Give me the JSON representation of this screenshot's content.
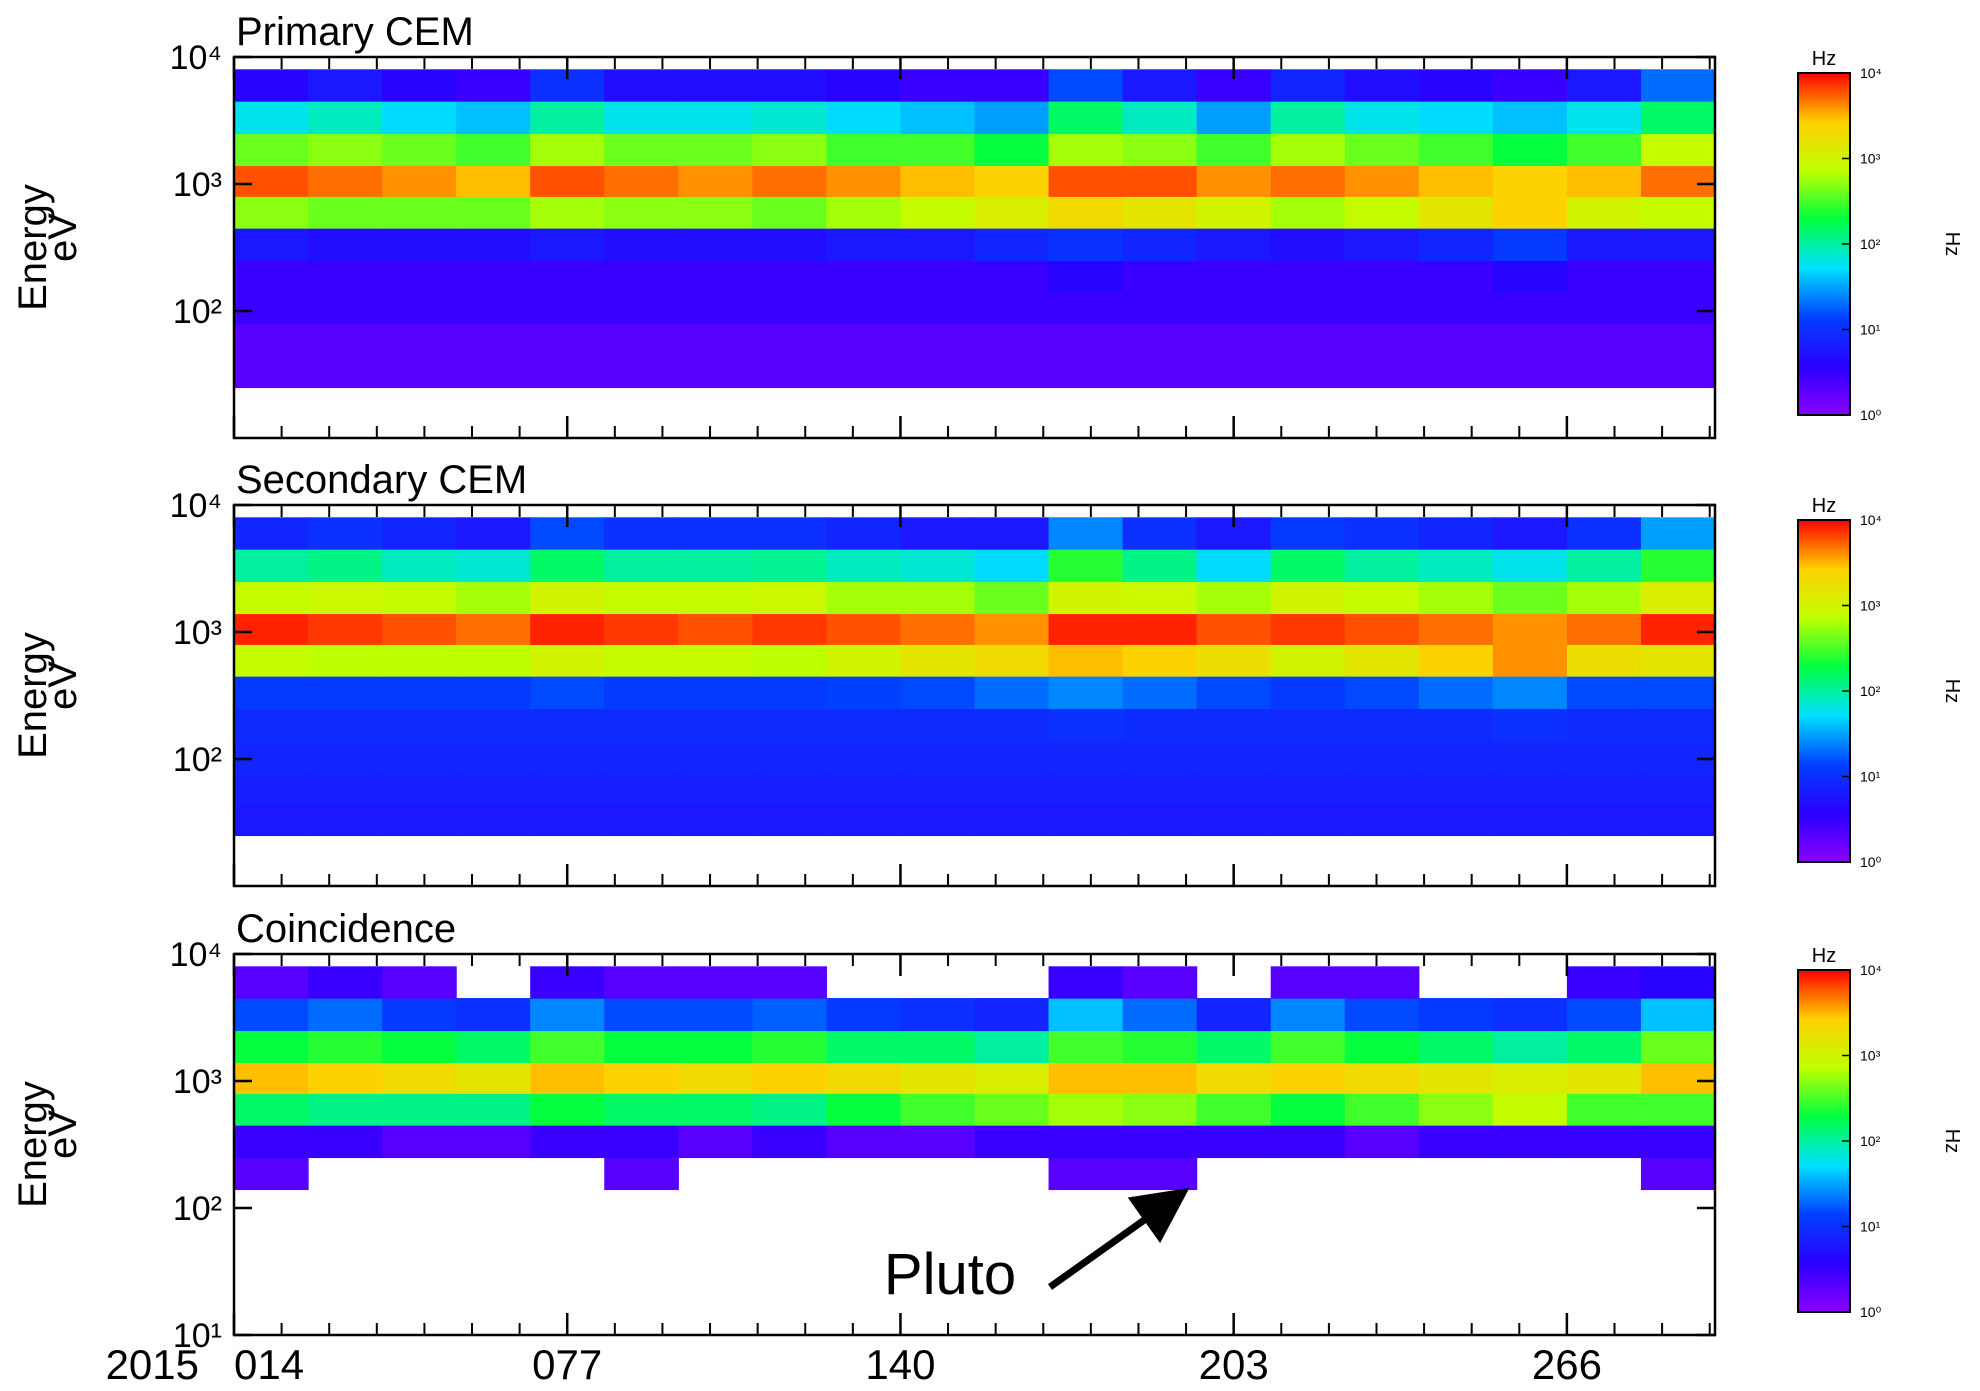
{
  "chart_data": [
    {
      "type": "heatmap",
      "title": "Primary CEM",
      "ylabel": [
        "Energy",
        "eV"
      ],
      "log_y": true,
      "xlim": [
        14,
        294
      ],
      "ylim": [
        10,
        10000
      ],
      "xticks": [
        14,
        77,
        140,
        203,
        266
      ],
      "xminorticks": [
        23,
        32,
        41,
        50,
        59,
        68,
        86,
        95,
        104,
        113,
        122,
        131,
        149,
        158,
        167,
        176,
        185,
        194,
        212,
        221,
        230,
        239,
        248,
        257,
        275,
        284,
        293
      ],
      "yticks": [
        {
          "value": 10000,
          "label": "10⁴"
        },
        {
          "value": 1000,
          "label": "10³"
        },
        {
          "value": 100,
          "label": "10²"
        }
      ],
      "xbins": [
        14,
        28,
        42,
        56,
        70,
        84,
        98,
        112,
        126,
        140,
        154,
        168,
        182,
        196,
        210,
        224,
        238,
        252,
        266,
        280,
        294
      ],
      "ybins": [
        25,
        45,
        80,
        140,
        250,
        450,
        800,
        1400,
        2500,
        4500,
        8000
      ],
      "z": [
        [
          2,
          2,
          2,
          2,
          2,
          2,
          2,
          2,
          2,
          2,
          2,
          2,
          2,
          2,
          2,
          2,
          2,
          2,
          2,
          2
        ],
        [
          2,
          2,
          2,
          2,
          2,
          2,
          2,
          2,
          2,
          2,
          2,
          2,
          2,
          2,
          2,
          2,
          2,
          2,
          2,
          2
        ],
        [
          3,
          3,
          3,
          3,
          3,
          3,
          3,
          3,
          3,
          3,
          3,
          3,
          3,
          3,
          3,
          3,
          3,
          3,
          3,
          3
        ],
        [
          3,
          3,
          3,
          3,
          3,
          3,
          3,
          3,
          3,
          3,
          3,
          4,
          3,
          3,
          3,
          3,
          3,
          4,
          3,
          3
        ],
        [
          6,
          5,
          5,
          5,
          6,
          5,
          5,
          5,
          6,
          6,
          8,
          10,
          8,
          6,
          5,
          6,
          8,
          12,
          6,
          6
        ],
        [
          500,
          400,
          400,
          400,
          600,
          500,
          500,
          400,
          600,
          800,
          1200,
          2000,
          1500,
          1000,
          600,
          800,
          1500,
          2500,
          1000,
          800
        ],
        [
          6000,
          5000,
          4000,
          3000,
          6000,
          5000,
          4000,
          5000,
          4000,
          3000,
          2500,
          6000,
          6000,
          4000,
          5000,
          4000,
          3000,
          2500,
          3000,
          5000
        ],
        [
          400,
          500,
          400,
          300,
          600,
          400,
          400,
          500,
          300,
          300,
          200,
          600,
          500,
          300,
          600,
          400,
          300,
          200,
          300,
          800
        ],
        [
          60,
          80,
          50,
          40,
          100,
          60,
          60,
          70,
          50,
          40,
          30,
          150,
          80,
          30,
          100,
          60,
          50,
          40,
          60,
          150
        ],
        [
          4,
          6,
          4,
          3,
          10,
          5,
          5,
          5,
          4,
          3,
          3,
          15,
          6,
          3,
          8,
          5,
          4,
          3,
          6,
          20
        ]
      ],
      "clim": [
        1,
        10000
      ],
      "colorbar_title": "Hz",
      "colorbar_label": "Hz",
      "cticks": [
        {
          "value": 1,
          "label": "10⁰"
        },
        {
          "value": 10,
          "label": "10¹"
        },
        {
          "value": 100,
          "label": "10²"
        },
        {
          "value": 1000,
          "label": "10³"
        },
        {
          "value": 10000,
          "label": "10⁴"
        }
      ],
      "colormap": [
        "#8a00ff",
        "#2a00ff",
        "#0040ff",
        "#00e0ff",
        "#00ff40",
        "#c0ff00",
        "#ffd000",
        "#ff0000"
      ]
    },
    {
      "type": "heatmap",
      "title": "Secondary CEM",
      "ylabel": [
        "Energy",
        "eV"
      ],
      "log_y": true,
      "xlim": [
        14,
        294
      ],
      "ylim": [
        10,
        10000
      ],
      "xticks": [
        14,
        77,
        140,
        203,
        266
      ],
      "xminorticks": [
        23,
        32,
        41,
        50,
        59,
        68,
        86,
        95,
        104,
        113,
        122,
        131,
        149,
        158,
        167,
        176,
        185,
        194,
        212,
        221,
        230,
        239,
        248,
        257,
        275,
        284,
        293
      ],
      "yticks": [
        {
          "value": 10000,
          "label": "10⁴"
        },
        {
          "value": 1000,
          "label": "10³"
        },
        {
          "value": 100,
          "label": "10²"
        }
      ],
      "xbins": [
        14,
        28,
        42,
        56,
        70,
        84,
        98,
        112,
        126,
        140,
        154,
        168,
        182,
        196,
        210,
        224,
        238,
        252,
        266,
        280,
        294
      ],
      "ybins": [
        25,
        45,
        80,
        140,
        250,
        450,
        800,
        1400,
        2500,
        4500,
        8000
      ],
      "z": [
        [
          6,
          6,
          6,
          6,
          6,
          6,
          6,
          6,
          6,
          6,
          6,
          6,
          6,
          6,
          6,
          6,
          6,
          6,
          6,
          6
        ],
        [
          7,
          7,
          7,
          7,
          7,
          7,
          7,
          7,
          7,
          7,
          7,
          7,
          7,
          7,
          7,
          7,
          7,
          7,
          7,
          7
        ],
        [
          8,
          8,
          8,
          8,
          8,
          8,
          8,
          8,
          8,
          8,
          8,
          8,
          8,
          8,
          8,
          8,
          8,
          8,
          8,
          8
        ],
        [
          9,
          9,
          9,
          9,
          9,
          9,
          9,
          9,
          9,
          9,
          9,
          10,
          9,
          9,
          9,
          9,
          9,
          10,
          9,
          9
        ],
        [
          12,
          12,
          12,
          12,
          15,
          12,
          12,
          12,
          14,
          15,
          20,
          25,
          20,
          15,
          12,
          15,
          20,
          25,
          15,
          15
        ],
        [
          800,
          700,
          700,
          700,
          1000,
          800,
          800,
          700,
          1000,
          1500,
          2000,
          3000,
          2500,
          1800,
          1000,
          1500,
          2500,
          4000,
          1800,
          1500
        ],
        [
          8000,
          7000,
          6000,
          5000,
          8000,
          7000,
          6000,
          7000,
          6000,
          5000,
          4000,
          8000,
          8000,
          6000,
          7000,
          6000,
          5000,
          4000,
          5000,
          8000
        ],
        [
          800,
          900,
          800,
          600,
          1000,
          800,
          800,
          900,
          600,
          600,
          400,
          1000,
          900,
          600,
          1000,
          800,
          600,
          400,
          600,
          1200
        ],
        [
          100,
          120,
          80,
          70,
          150,
          100,
          100,
          110,
          80,
          70,
          50,
          250,
          120,
          50,
          150,
          100,
          80,
          60,
          100,
          250
        ],
        [
          8,
          10,
          8,
          6,
          15,
          10,
          10,
          10,
          8,
          6,
          6,
          25,
          10,
          6,
          12,
          10,
          8,
          6,
          10,
          30
        ]
      ],
      "clim": [
        1,
        10000
      ],
      "colorbar_title": "Hz",
      "colorbar_label": "Hz",
      "cticks": [
        {
          "value": 1,
          "label": "10⁰"
        },
        {
          "value": 10,
          "label": "10¹"
        },
        {
          "value": 100,
          "label": "10²"
        },
        {
          "value": 1000,
          "label": "10³"
        },
        {
          "value": 10000,
          "label": "10⁴"
        }
      ],
      "colormap": [
        "#8a00ff",
        "#2a00ff",
        "#0040ff",
        "#00e0ff",
        "#00ff40",
        "#c0ff00",
        "#ffd000",
        "#ff0000"
      ]
    },
    {
      "type": "heatmap",
      "title": "Coincidence",
      "ylabel": [
        "Energy",
        "eV"
      ],
      "log_y": true,
      "xlim": [
        14,
        294
      ],
      "ylim": [
        10,
        10000
      ],
      "year_label": "2015",
      "xticks": [
        {
          "value": 14,
          "label": "014"
        },
        {
          "value": 77,
          "label": "077"
        },
        {
          "value": 140,
          "label": "140"
        },
        {
          "value": 203,
          "label": "203"
        },
        {
          "value": 266,
          "label": "266"
        }
      ],
      "xminorticks": [
        23,
        32,
        41,
        50,
        59,
        68,
        86,
        95,
        104,
        113,
        122,
        131,
        149,
        158,
        167,
        176,
        185,
        194,
        212,
        221,
        230,
        239,
        248,
        257,
        275,
        284,
        293
      ],
      "yticks": [
        {
          "value": 10000,
          "label": "10⁴"
        },
        {
          "value": 1000,
          "label": "10³"
        },
        {
          "value": 100,
          "label": "10²"
        },
        {
          "value": 10,
          "label": "10¹"
        }
      ],
      "xbins": [
        14,
        28,
        42,
        56,
        70,
        84,
        98,
        112,
        126,
        140,
        154,
        168,
        182,
        196,
        210,
        224,
        238,
        252,
        266,
        280,
        294
      ],
      "ybins": [
        25,
        45,
        80,
        140,
        250,
        450,
        800,
        1400,
        2500,
        4500,
        8000
      ],
      "z": [
        [
          null,
          null,
          null,
          null,
          null,
          null,
          null,
          null,
          null,
          null,
          null,
          null,
          null,
          null,
          null,
          null,
          null,
          null,
          null,
          null
        ],
        [
          null,
          null,
          null,
          null,
          null,
          null,
          null,
          null,
          null,
          null,
          null,
          null,
          null,
          null,
          null,
          null,
          null,
          null,
          null,
          null
        ],
        [
          null,
          null,
          null,
          null,
          null,
          null,
          null,
          null,
          null,
          null,
          null,
          null,
          null,
          null,
          null,
          null,
          null,
          null,
          null,
          null
        ],
        [
          2,
          null,
          null,
          null,
          null,
          2,
          null,
          null,
          null,
          null,
          null,
          2,
          2,
          null,
          null,
          null,
          null,
          null,
          null,
          2
        ],
        [
          3,
          3,
          2,
          2,
          3,
          3,
          2,
          3,
          2,
          2,
          3,
          3,
          3,
          3,
          3,
          2,
          3,
          3,
          3,
          3
        ],
        [
          150,
          120,
          120,
          120,
          200,
          150,
          150,
          120,
          200,
          300,
          400,
          600,
          500,
          300,
          200,
          300,
          500,
          800,
          300,
          300
        ],
        [
          3000,
          2500,
          2000,
          1500,
          3000,
          2500,
          2000,
          2500,
          2000,
          1500,
          1200,
          3000,
          3000,
          2000,
          2500,
          2000,
          1500,
          1200,
          1500,
          3000
        ],
        [
          200,
          250,
          200,
          150,
          300,
          200,
          200,
          250,
          150,
          150,
          100,
          300,
          250,
          150,
          300,
          200,
          150,
          100,
          150,
          400
        ],
        [
          15,
          20,
          12,
          10,
          25,
          15,
          15,
          18,
          12,
          10,
          8,
          40,
          20,
          8,
          25,
          15,
          12,
          10,
          15,
          40
        ],
        [
          2,
          3,
          2,
          null,
          3,
          2,
          2,
          2,
          null,
          null,
          null,
          3,
          2,
          null,
          2,
          2,
          null,
          null,
          3,
          4
        ]
      ],
      "annotation": {
        "text": "Pluto",
        "x": 194
      },
      "clim": [
        1,
        10000
      ],
      "colorbar_title": "Hz",
      "colorbar_label": "Hz",
      "cticks": [
        {
          "value": 1,
          "label": "10⁰"
        },
        {
          "value": 10,
          "label": "10¹"
        },
        {
          "value": 100,
          "label": "10²"
        },
        {
          "value": 1000,
          "label": "10³"
        },
        {
          "value": 10000,
          "label": "10⁴"
        }
      ],
      "colormap": [
        "#8a00ff",
        "#2a00ff",
        "#0040ff",
        "#00e0ff",
        "#00ff40",
        "#c0ff00",
        "#ffd000",
        "#ff0000"
      ]
    }
  ]
}
